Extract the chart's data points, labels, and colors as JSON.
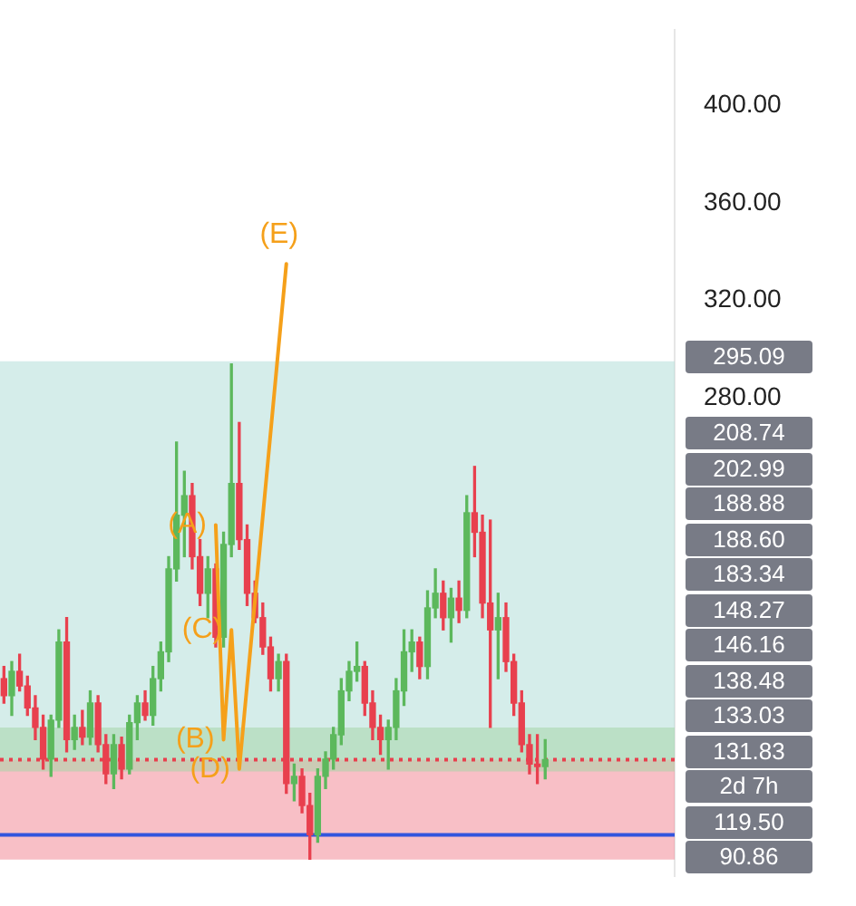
{
  "chart_data": {
    "type": "candlestick",
    "categories": [
      null,
      null,
      null,
      null,
      null,
      null,
      null,
      null,
      null,
      null,
      null,
      null,
      null,
      null,
      null,
      null,
      null,
      null,
      null,
      null,
      null,
      null,
      null,
      null,
      null,
      null,
      null,
      null,
      null,
      null,
      null,
      null,
      null,
      null,
      null,
      null,
      null,
      null,
      null,
      null,
      null,
      null,
      null,
      null,
      null,
      null,
      null,
      null,
      null,
      null,
      null,
      null,
      null,
      null,
      null,
      null,
      null,
      null,
      null,
      null,
      null,
      null,
      null,
      null,
      null,
      null,
      null,
      null,
      null,
      null,
      null,
      null,
      null,
      null,
      null,
      null,
      null,
      null,
      null,
      null,
      null,
      null,
      null,
      null,
      null,
      null
    ],
    "ohlc": [
      [
        165,
        170,
        155,
        158
      ],
      [
        158,
        172,
        150,
        168
      ],
      [
        168,
        175,
        160,
        162
      ],
      [
        162,
        166,
        150,
        153
      ],
      [
        153,
        158,
        140,
        145
      ],
      [
        145,
        150,
        128,
        132
      ],
      [
        132,
        150,
        125,
        148
      ],
      [
        148,
        185,
        145,
        180
      ],
      [
        180,
        190,
        135,
        140
      ],
      [
        140,
        150,
        136,
        145
      ],
      [
        145,
        152,
        138,
        141
      ],
      [
        141,
        160,
        138,
        155
      ],
      [
        155,
        158,
        135,
        138
      ],
      [
        138,
        142,
        122,
        126
      ],
      [
        126,
        142,
        120,
        138
      ],
      [
        138,
        141,
        124,
        128
      ],
      [
        128,
        150,
        126,
        147
      ],
      [
        147,
        158,
        140,
        155
      ],
      [
        155,
        160,
        148,
        150
      ],
      [
        150,
        170,
        146,
        165
      ],
      [
        165,
        180,
        160,
        176
      ],
      [
        176,
        215,
        172,
        210
      ],
      [
        210,
        262,
        205,
        232
      ],
      [
        232,
        250,
        215,
        240
      ],
      [
        240,
        245,
        210,
        215
      ],
      [
        215,
        222,
        195,
        200
      ],
      [
        200,
        215,
        190,
        210
      ],
      [
        210,
        212,
        178,
        182
      ],
      [
        182,
        225,
        178,
        220
      ],
      [
        220,
        294,
        215,
        245
      ],
      [
        245,
        270,
        218,
        222
      ],
      [
        222,
        228,
        195,
        200
      ],
      [
        200,
        205,
        188,
        190
      ],
      [
        190,
        196,
        175,
        178
      ],
      [
        178,
        182,
        160,
        165
      ],
      [
        165,
        175,
        160,
        172
      ],
      [
        172,
        175,
        118,
        122
      ],
      [
        122,
        130,
        115,
        125
      ],
      [
        125,
        128,
        110,
        113
      ],
      [
        113,
        118,
        91,
        101
      ],
      [
        101,
        128,
        98,
        125
      ],
      [
        125,
        135,
        120,
        132
      ],
      [
        132,
        145,
        128,
        142
      ],
      [
        142,
        165,
        138,
        160
      ],
      [
        160,
        172,
        156,
        168
      ],
      [
        168,
        180,
        164,
        170
      ],
      [
        170,
        172,
        150,
        155
      ],
      [
        155,
        160,
        140,
        145
      ],
      [
        145,
        150,
        134,
        140
      ],
      [
        140,
        148,
        128,
        145
      ],
      [
        145,
        165,
        140,
        160
      ],
      [
        160,
        185,
        154,
        176
      ],
      [
        176,
        185,
        168,
        180
      ],
      [
        180,
        182,
        165,
        170
      ],
      [
        170,
        201,
        165,
        194
      ],
      [
        194,
        210,
        190,
        200
      ],
      [
        200,
        205,
        185,
        190
      ],
      [
        190,
        202,
        180,
        198
      ],
      [
        198,
        205,
        188,
        193
      ],
      [
        193,
        240,
        190,
        233
      ],
      [
        233,
        252,
        215,
        225
      ],
      [
        225,
        232,
        190,
        196
      ],
      [
        196,
        230,
        145,
        185
      ],
      [
        185,
        200,
        165,
        190
      ],
      [
        190,
        196,
        168,
        172
      ],
      [
        172,
        175,
        150,
        155
      ],
      [
        155,
        160,
        135,
        138
      ],
      [
        138,
        142,
        126,
        130
      ],
      [
        130,
        142,
        122,
        129
      ],
      [
        129,
        140,
        124,
        131.83
      ],
      null,
      null,
      null,
      null,
      null,
      null,
      null,
      null,
      null,
      null,
      null,
      null,
      null,
      null,
      null,
      null
    ],
    "colors": [
      "#e8404e",
      "#5cb85c",
      "#e8404e",
      "#e8404e",
      "#e8404e",
      "#e8404e",
      "#5cb85c",
      "#5cb85c",
      "#e8404e",
      "#5cb85c",
      "#e8404e",
      "#5cb85c",
      "#e8404e",
      "#e8404e",
      "#5cb85c",
      "#e8404e",
      "#5cb85c",
      "#5cb85c",
      "#e8404e",
      "#5cb85c",
      "#5cb85c",
      "#5cb85c",
      "#5cb85c",
      "#5cb85c",
      "#e8404e",
      "#e8404e",
      "#5cb85c",
      "#e8404e",
      "#5cb85c",
      "#5cb85c",
      "#e8404e",
      "#e8404e",
      "#e8404e",
      "#e8404e",
      "#e8404e",
      "#5cb85c",
      "#e8404e",
      "#5cb85c",
      "#e8404e",
      "#e8404e",
      "#5cb85c",
      "#5cb85c",
      "#5cb85c",
      "#5cb85c",
      "#5cb85c",
      "#5cb85c",
      "#e8404e",
      "#e8404e",
      "#e8404e",
      "#5cb85c",
      "#5cb85c",
      "#5cb85c",
      "#5cb85c",
      "#e8404e",
      "#5cb85c",
      "#5cb85c",
      "#e8404e",
      "#5cb85c",
      "#e8404e",
      "#5cb85c",
      "#e8404e",
      "#e8404e",
      "#e8404e",
      "#5cb85c",
      "#e8404e",
      "#e8404e",
      "#e8404e",
      "#e8404e",
      "#e8404e",
      "#5cb85c",
      null,
      null,
      null,
      null,
      null,
      null,
      null,
      null,
      null,
      null,
      null,
      null,
      null,
      null,
      null,
      null
    ],
    "series": [
      {
        "type": "line",
        "color": "#f5a01a",
        "values": [
          null,
          null,
          null,
          null,
          null,
          null,
          null,
          null,
          null,
          null,
          null,
          null,
          null,
          null,
          null,
          null,
          null,
          null,
          null,
          null,
          null,
          null,
          null,
          null,
          null,
          null,
          null,
          228,
          140,
          185,
          128,
          null,
          null,
          null,
          null,
          null,
          335,
          null,
          null,
          null,
          null,
          null,
          null,
          null,
          null,
          null,
          null,
          null,
          null,
          null,
          null,
          null,
          null,
          null,
          null,
          null,
          null,
          null,
          null,
          null,
          null,
          null,
          null,
          null,
          null,
          null,
          null,
          null,
          null,
          null,
          null,
          null,
          null,
          null,
          null,
          null,
          null,
          null,
          null,
          null,
          null,
          null,
          null,
          null,
          null,
          null
        ],
        "value_labels": [
          null,
          null,
          null,
          null,
          null,
          null,
          null,
          null,
          null,
          null,
          null,
          null,
          null,
          null,
          null,
          null,
          null,
          null,
          null,
          null,
          null,
          null,
          null,
          null,
          null,
          null,
          null,
          "(A)",
          "(B)",
          "(C)",
          "(D)",
          null,
          null,
          null,
          null,
          null,
          "(E)",
          null,
          null,
          null,
          null,
          null,
          null,
          null,
          null,
          null,
          null,
          null,
          null,
          null,
          null,
          null,
          null,
          null,
          null,
          null,
          null,
          null,
          null,
          null,
          null,
          null,
          null,
          null,
          null,
          null,
          null,
          null,
          null,
          null,
          null,
          null,
          null,
          null,
          null,
          null,
          null,
          null,
          null,
          null,
          null,
          null,
          null,
          null,
          null,
          null
        ]
      }
    ],
    "ylim": [
      84,
      431
    ],
    "yticks": [
      {
        "value": 280,
        "label": "280.00"
      },
      {
        "value": 320,
        "label": "320.00"
      },
      {
        "value": 360,
        "label": "360.00"
      },
      {
        "value": 400,
        "label": "400.00"
      }
    ],
    "tick_labels": "y",
    "bands": [
      {
        "axis": "y",
        "from": 131.83,
        "to": 295.09,
        "color": "#b2dfd8"
      },
      {
        "axis": "y",
        "from": 90.86,
        "to": 131.83,
        "color": "#f28b98"
      },
      {
        "axis": "y",
        "from": 127,
        "to": 145,
        "color": "#a5d6a7"
      }
    ],
    "ref_lines": [
      {
        "axis": "y",
        "value": 131.83,
        "color": "#e8404e",
        "line_style": "dotted"
      },
      {
        "axis": "y",
        "value": 101,
        "color": "#3355dd",
        "line_style": "solid"
      }
    ],
    "annotations": [
      "295.09",
      "208.74",
      "202.99",
      "188.88",
      "188.60",
      "183.34",
      "148.27",
      "146.16",
      "138.48",
      "133.03",
      "131.83",
      "2d 7h",
      "119.50",
      "90.86"
    ]
  }
}
